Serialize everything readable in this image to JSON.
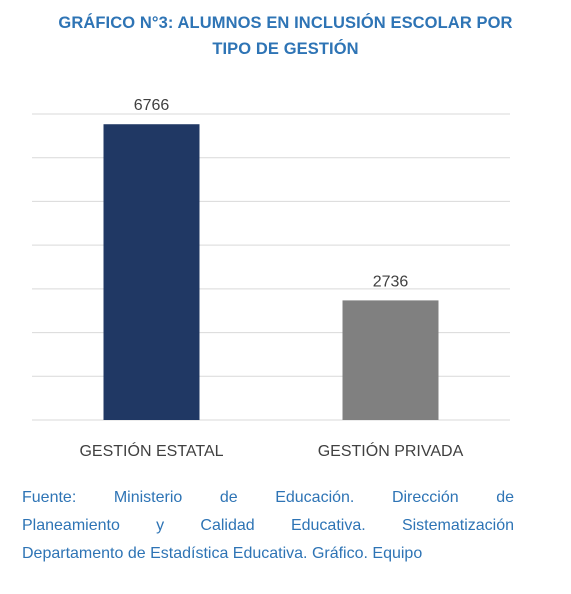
{
  "title_lines": [
    "GRÁFICO N°3: ALUMNOS EN INCLUSIÓN ESCOLAR POR",
    "TIPO DE GESTIÓN"
  ],
  "chart_data": {
    "type": "bar",
    "categories": [
      "GESTIÓN ESTATAL",
      "GESTIÓN PRIVADA"
    ],
    "values": [
      6766,
      2736
    ],
    "data_labels": [
      "6766",
      "2736"
    ],
    "colors": [
      "#203864",
      "#808080"
    ],
    "ylim": [
      0,
      7000
    ],
    "grid": true,
    "y_tick_labels_visible": false
  },
  "source_lines": [
    "Fuente: Ministerio de Educación. Dirección de",
    "Planeamiento y Calidad Educativa. Sistematización",
    "Departamento de Estadística Educativa. Gráfico. Equipo"
  ]
}
